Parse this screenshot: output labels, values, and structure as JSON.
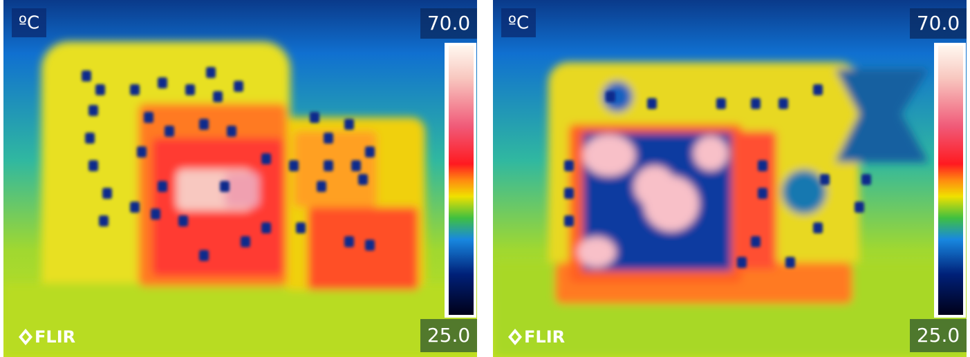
{
  "images": [
    {
      "unit": "ºC",
      "scale_max": "70.0",
      "scale_min": "25.0",
      "logo": "FLIR"
    },
    {
      "unit": "ºC",
      "scale_max": "70.0",
      "scale_min": "25.0",
      "logo": "FLIR"
    }
  ]
}
